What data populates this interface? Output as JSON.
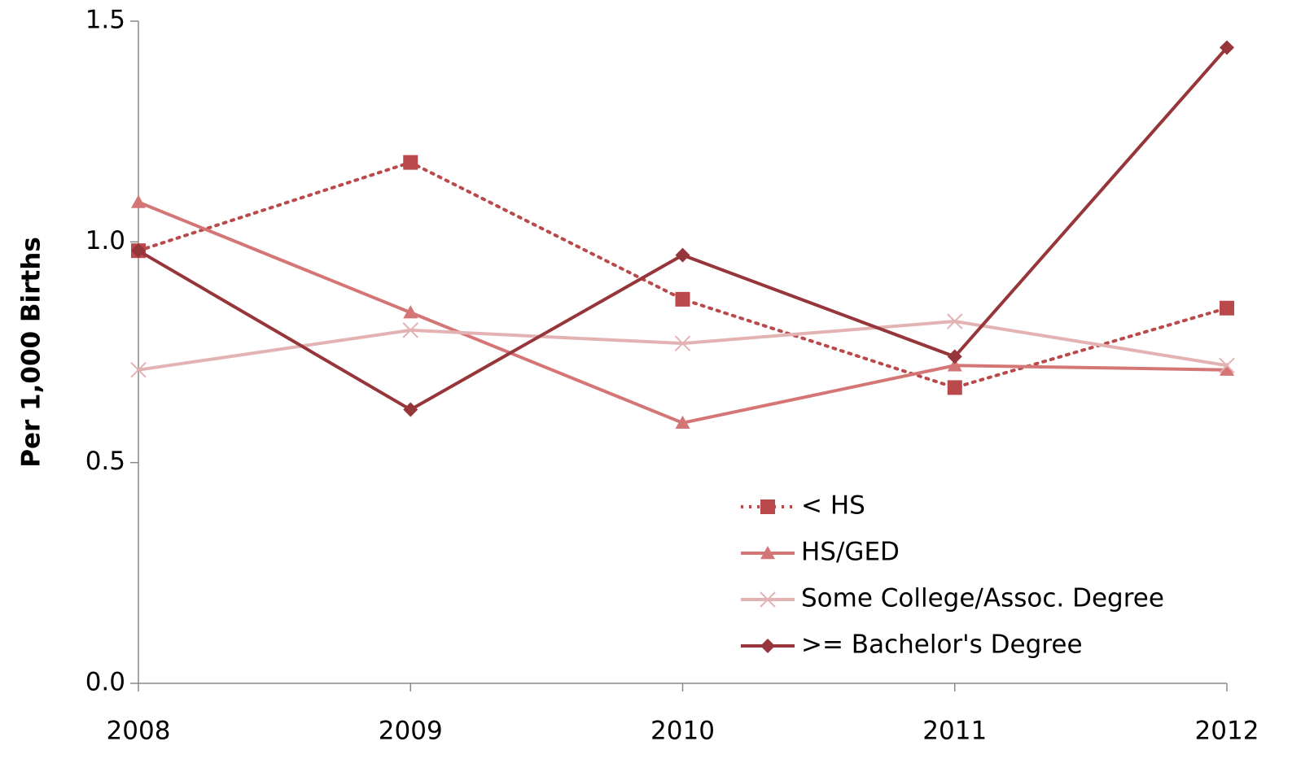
{
  "chart_data": {
    "type": "line",
    "y_label": "Per 1,000 Births",
    "categories": [
      "2008",
      "2009",
      "2010",
      "2011",
      "2012"
    ],
    "series": [
      {
        "name": "< HS",
        "color": "#b9494a",
        "marker": "square",
        "dash": "dotted",
        "values": [
          0.98,
          1.18,
          0.87,
          0.67,
          0.85
        ]
      },
      {
        "name": "HS/GED",
        "color": "#d57676",
        "marker": "triangle",
        "dash": "solid",
        "values": [
          1.09,
          0.84,
          0.59,
          0.72,
          0.71
        ]
      },
      {
        "name": "Some College/Assoc. Degree",
        "color": "#e3b3b3",
        "marker": "x",
        "dash": "solid",
        "values": [
          0.71,
          0.8,
          0.77,
          0.82,
          0.72
        ]
      },
      {
        "name": ">= Bachelor's Degree",
        "color": "#96363a",
        "marker": "diamond",
        "dash": "solid",
        "values": [
          0.98,
          0.62,
          0.97,
          0.74,
          1.44
        ]
      }
    ],
    "ylim": [
      0,
      1.5
    ],
    "yticks": [
      {
        "value": 1.5,
        "label": "1.5"
      },
      {
        "value": 1.0,
        "label": "1.0"
      },
      {
        "value": 0.5,
        "label": "0.5"
      },
      {
        "value": 0,
        "label": "0.0"
      }
    ],
    "grid": false
  }
}
